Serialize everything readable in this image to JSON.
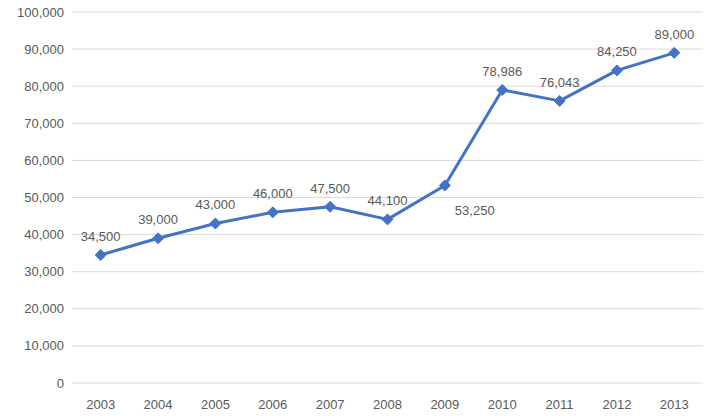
{
  "chart_data": {
    "type": "line",
    "categories": [
      "2003",
      "2004",
      "2005",
      "2006",
      "2007",
      "2008",
      "2009",
      "2010",
      "2011",
      "2012",
      "2013"
    ],
    "values": [
      34500,
      39000,
      43000,
      46000,
      47500,
      44100,
      53250,
      78986,
      76043,
      84250,
      89000
    ],
    "value_labels": [
      "34,500",
      "39,000",
      "43,000",
      "46,000",
      "47,500",
      "44,100",
      "53,250",
      "78,986",
      "76,043",
      "84,250",
      "89,000"
    ],
    "color": "#4472c4",
    "marker": "diamond",
    "ylim": [
      0,
      100000
    ],
    "yticks": [
      0,
      {
        "value": 10000,
        "label": "10,000"
      },
      {
        "value": 20000,
        "label": "20,000"
      },
      {
        "value": 30000,
        "label": "30,000"
      },
      {
        "value": 40000,
        "label": "40,000"
      },
      {
        "value": 50000,
        "label": "50,000"
      },
      {
        "value": 60000,
        "label": "60,000"
      },
      {
        "value": 70000,
        "label": "70,000"
      },
      {
        "value": 80000,
        "label": "80,000"
      },
      {
        "value": 90000,
        "label": "90,000"
      },
      {
        "value": 100000,
        "label": "100,000"
      }
    ],
    "grid": true,
    "data_labels": true
  }
}
